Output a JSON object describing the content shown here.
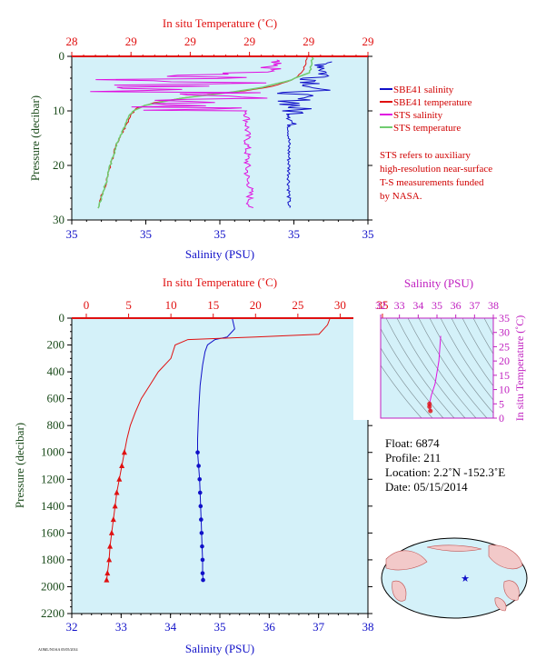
{
  "colors": {
    "background": "#d4f1f9",
    "salinity": "#1010c8",
    "temperature": "#e01010",
    "sts_salinity": "#e010e0",
    "sts_temperature": "#70cc70",
    "pressure_label": "#1a4a1a",
    "note": "#d00000",
    "inset_axis": "#c020c0"
  },
  "top_plot": {
    "temp_axis_title": "In situ Temperature (˚C)",
    "temp_ticks": [
      "28",
      "29",
      "29",
      "29",
      "29",
      "29"
    ],
    "sal_axis_title": "Salinity (PSU)",
    "sal_ticks": [
      "35",
      "35",
      "35",
      "35",
      "35"
    ],
    "pressure_axis_title": "Pressure (decibar)",
    "pressure_ticks": [
      "0",
      "10",
      "20",
      "30"
    ],
    "legend": [
      {
        "label": "SBE41 salinity",
        "color": "#1010c8"
      },
      {
        "label": "SBE41 temperature",
        "color": "#e01010"
      },
      {
        "label": "STS salinity",
        "color": "#e010e0"
      },
      {
        "label": "STS temperature",
        "color": "#70cc70"
      }
    ],
    "note_lines": [
      "STS refers to auxiliary",
      "high-resolution near-surface",
      "T-S measurements funded",
      "by NASA."
    ]
  },
  "main_plot": {
    "temp_axis_title": "In situ Temperature (˚C)",
    "temp_ticks": [
      "0",
      "5",
      "10",
      "15",
      "20",
      "25",
      "30",
      "35"
    ],
    "sal_axis_title": "Salinity (PSU)",
    "sal_ticks": [
      "32",
      "33",
      "34",
      "35",
      "36",
      "37",
      "38"
    ],
    "pressure_axis_title": "Pressure (decibar)",
    "pressure_ticks": [
      "0",
      "200",
      "400",
      "600",
      "800",
      "1000",
      "1200",
      "1400",
      "1600",
      "1800",
      "2000",
      "2200"
    ]
  },
  "ts_inset": {
    "sal_axis_title": "Salinity (PSU)",
    "sal_ticks": [
      "32",
      "33",
      "34",
      "35",
      "36",
      "37",
      "38"
    ],
    "temp_axis_title": "In situ Temperature (˚C)",
    "temp_ticks": [
      "0",
      "5",
      "10",
      "15",
      "20",
      "25",
      "30",
      "35"
    ]
  },
  "float_info": {
    "float": "Float:  6874",
    "profile": "Profile:  211",
    "location": "Location:  2.2˚N  -152.3˚E",
    "date": "Date:  05/15/2014"
  },
  "footer_id": "AOML/NOAA 05/05/2014",
  "chart_data": [
    {
      "type": "line",
      "title": "",
      "xlabel": "Salinity (PSU)",
      "ylabel": "Pressure (decibar)",
      "ylim": [
        30,
        0
      ],
      "series": [
        {
          "name": "SBE41 salinity",
          "x": [
            35.7,
            35.9,
            35.8,
            35.6,
            35.6,
            35.6,
            35.6
          ],
          "y": [
            2,
            4,
            8,
            10,
            15,
            20,
            27
          ]
        },
        {
          "name": "SBE41 temperature",
          "x": [
            28.99,
            28.98,
            28.9,
            28.4,
            28.3,
            28.25
          ],
          "y": [
            1,
            4,
            7,
            10,
            20,
            28
          ]
        },
        {
          "name": "STS salinity",
          "x": [
            35.1,
            35.2,
            35.0,
            35.3,
            35.3,
            35.3
          ],
          "y": [
            2,
            5,
            9,
            13,
            20,
            28
          ]
        },
        {
          "name": "STS temperature",
          "x": [
            29.0,
            28.98,
            28.9,
            28.4,
            28.3,
            28.25
          ],
          "y": [
            1,
            4,
            7,
            10,
            20,
            28
          ]
        }
      ]
    },
    {
      "type": "line",
      "title": "",
      "xlabel": "Salinity (PSU)",
      "ylabel": "Pressure (decibar)",
      "xlim": [
        32,
        38
      ],
      "ylim": [
        2200,
        0
      ],
      "series": [
        {
          "name": "Salinity",
          "values": [
            [
              35.25,
              0
            ],
            [
              35.3,
              80
            ],
            [
              35.15,
              140
            ],
            [
              34.9,
              160
            ],
            [
              34.75,
              200
            ],
            [
              34.7,
              250
            ],
            [
              34.65,
              350
            ],
            [
              34.6,
              500
            ],
            [
              34.57,
              700
            ],
            [
              34.55,
              900
            ],
            [
              34.55,
              1000
            ],
            [
              34.57,
              1100
            ],
            [
              34.59,
              1200
            ],
            [
              34.6,
              1300
            ],
            [
              34.61,
              1400
            ],
            [
              34.62,
              1500
            ],
            [
              34.63,
              1600
            ],
            [
              34.64,
              1700
            ],
            [
              34.65,
              1800
            ],
            [
              34.65,
              1900
            ],
            [
              34.66,
              1950
            ]
          ]
        },
        {
          "name": "In situ Temperature",
          "values": [
            [
              28.8,
              0
            ],
            [
              28.5,
              50
            ],
            [
              27.5,
              120
            ],
            [
              20,
              140
            ],
            [
              12,
              160
            ],
            [
              10.5,
              200
            ],
            [
              10,
              300
            ],
            [
              8.5,
              400
            ],
            [
              7.5,
              500
            ],
            [
              6.5,
              600
            ],
            [
              5.8,
              700
            ],
            [
              5.2,
              800
            ],
            [
              4.8,
              900
            ],
            [
              4.5,
              1000
            ],
            [
              4.2,
              1100
            ],
            [
              3.9,
              1200
            ],
            [
              3.6,
              1300
            ],
            [
              3.4,
              1400
            ],
            [
              3.2,
              1500
            ],
            [
              3.0,
              1600
            ],
            [
              2.8,
              1700
            ],
            [
              2.7,
              1800
            ],
            [
              2.5,
              1900
            ],
            [
              2.4,
              1950
            ]
          ]
        }
      ]
    },
    {
      "type": "scatter",
      "title": "",
      "xlabel": "Salinity (PSU)",
      "ylabel": "In situ Temperature (˚C)",
      "xlim": [
        32,
        38
      ],
      "ylim": [
        0,
        35
      ],
      "series": [
        {
          "name": "T-S",
          "values": [
            [
              35.2,
              28.8
            ],
            [
              35.1,
              20
            ],
            [
              34.9,
              12
            ],
            [
              34.7,
              8
            ],
            [
              34.6,
              5
            ],
            [
              34.6,
              4
            ],
            [
              34.65,
              2.5
            ]
          ]
        }
      ]
    }
  ]
}
